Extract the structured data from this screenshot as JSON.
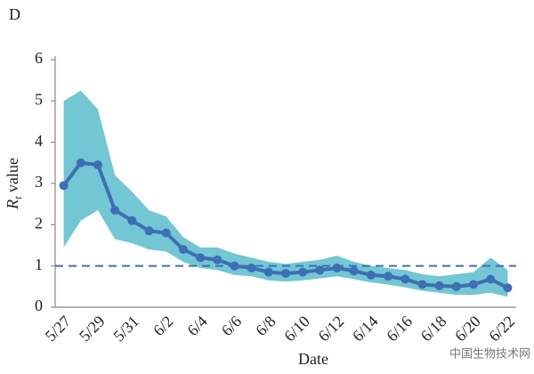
{
  "chart_data": {
    "type": "line",
    "panel_label": "D",
    "ylabel": {
      "main": "R",
      "sub": "t",
      "rest": " value"
    },
    "xlabel": "Date",
    "watermark": "中国生物技术网",
    "categories": [
      "5/27",
      null,
      "5/29",
      null,
      "5/31",
      null,
      "6/2",
      null,
      "6/4",
      null,
      "6/6",
      null,
      "6/8",
      null,
      "6/10",
      null,
      "6/12",
      null,
      "6/14",
      null,
      "6/16",
      null,
      "6/18",
      null,
      "6/20",
      null,
      "6/22"
    ],
    "line": {
      "color": "#3d6fb4",
      "values": [
        2.95,
        3.5,
        3.45,
        2.35,
        2.1,
        1.85,
        1.8,
        1.4,
        1.2,
        1.15,
        1.0,
        0.95,
        0.85,
        0.82,
        0.85,
        0.9,
        0.95,
        0.88,
        0.78,
        0.75,
        0.68,
        0.55,
        0.52,
        0.5,
        0.55,
        0.68,
        0.47
      ]
    },
    "band": {
      "color": "#5bbccb",
      "upper": [
        5.0,
        5.25,
        4.8,
        3.2,
        2.8,
        2.35,
        2.2,
        1.7,
        1.45,
        1.45,
        1.3,
        1.2,
        1.1,
        1.05,
        1.1,
        1.15,
        1.25,
        1.1,
        1.0,
        0.95,
        0.9,
        0.8,
        0.75,
        0.8,
        0.85,
        1.2,
        0.9
      ],
      "lower": [
        1.45,
        2.1,
        2.35,
        1.65,
        1.55,
        1.4,
        1.35,
        1.1,
        0.95,
        0.9,
        0.78,
        0.75,
        0.65,
        0.62,
        0.65,
        0.7,
        0.75,
        0.68,
        0.6,
        0.55,
        0.48,
        0.4,
        0.35,
        0.3,
        0.3,
        0.35,
        0.25
      ]
    },
    "threshold": {
      "value": 1,
      "color": "#3d6fb4"
    },
    "ylim": [
      0,
      6
    ],
    "yticks": [
      0,
      1,
      2,
      3,
      4,
      5,
      6
    ]
  }
}
